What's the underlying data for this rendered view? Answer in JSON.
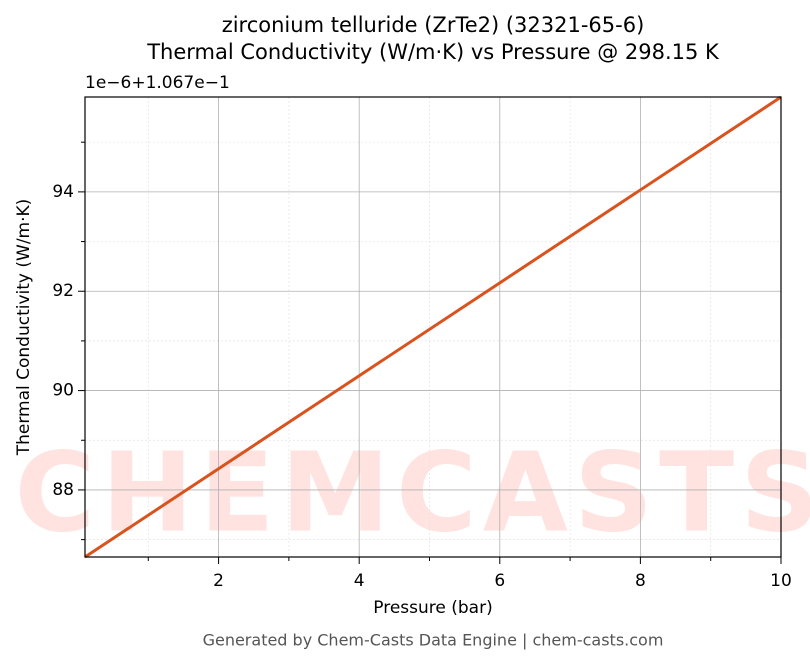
{
  "chart_data": {
    "type": "line",
    "title": "zirconium telluride (ZrTe2) (32321-65-6)",
    "subtitle": "Thermal Conductivity (W/m·K) vs Pressure @ 298.15 K",
    "x_label": "Pressure (bar)",
    "y_label": "Thermal Conductivity (W/m·K)",
    "y_offset_label": "1e−6+1.067e−1",
    "watermark": "CHEMCASTS",
    "footer": "Generated by Chem-Casts Data Engine | chem-casts.com",
    "x": [
      0.1,
      10
    ],
    "series": [
      {
        "name": "Thermal Conductivity",
        "color": "#d9531e",
        "values": [
          86.65,
          95.91
        ]
      }
    ],
    "xlim": [
      0.1,
      10
    ],
    "xticks": [
      2,
      4,
      6,
      8,
      10
    ],
    "xminorticks": [
      1,
      3,
      5,
      7,
      9
    ],
    "ylim": [
      86.65,
      95.91
    ],
    "yticks": [
      88,
      90,
      92,
      94
    ],
    "yminorticks": [
      87,
      89,
      91,
      93,
      95
    ],
    "grid": true
  }
}
